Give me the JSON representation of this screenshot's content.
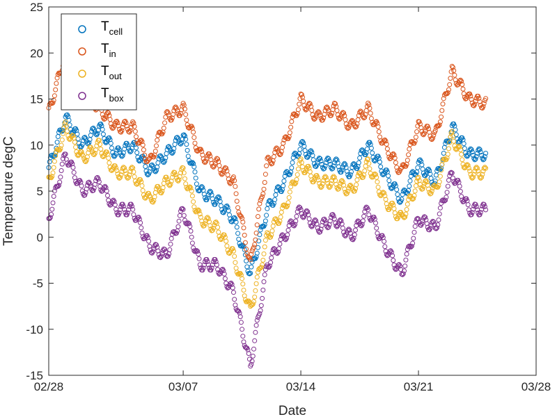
{
  "chart_data": {
    "type": "scatter",
    "xlabel": "Date",
    "ylabel": "Temperature degC",
    "xlim": [
      "02/28",
      "03/28"
    ],
    "ylim": [
      -15,
      25
    ],
    "x_ticks": [
      "02/28",
      "03/07",
      "03/14",
      "03/21",
      "03/28"
    ],
    "y_ticks": [
      -15,
      -10,
      -5,
      0,
      5,
      10,
      15,
      20,
      25
    ],
    "grid": false,
    "legend_position": "top-left",
    "marker": "open-circle",
    "x_dates": [
      "02/28",
      "02/29",
      "03/01",
      "03/02",
      "03/03",
      "03/04",
      "03/05",
      "03/06",
      "03/07",
      "03/08",
      "03/09",
      "03/10",
      "03/11",
      "03/12",
      "03/13",
      "03/14",
      "03/15",
      "03/16",
      "03/17",
      "03/18",
      "03/19",
      "03/20",
      "03/21",
      "03/22",
      "03/23",
      "03/24",
      "03/25"
    ],
    "series": [
      {
        "legend_main": "T",
        "legend_sub": "cell",
        "color": "#0072BD",
        "values": [
          7.5,
          13,
          10,
          12,
          9,
          10,
          7,
          9,
          11,
          5,
          4,
          2,
          -4,
          3,
          6,
          10,
          8,
          8,
          7,
          10,
          7,
          4,
          8,
          6,
          12,
          9,
          9
        ]
      },
      {
        "legend_main": "T",
        "legend_sub": "in",
        "color": "#D95319",
        "values": [
          13.5,
          20,
          16,
          14,
          12,
          12,
          8,
          13,
          14,
          9,
          8,
          6,
          -3,
          8,
          10,
          15,
          13,
          14,
          12,
          14,
          10,
          7,
          12,
          11,
          18,
          15,
          14.5
        ]
      },
      {
        "legend_main": "T",
        "legend_sub": "out",
        "color": "#EDB120",
        "values": [
          6,
          12,
          8.5,
          10,
          7,
          7,
          4,
          6,
          7,
          2,
          1,
          -2,
          -8,
          0,
          3,
          8,
          6,
          6,
          5,
          8,
          4,
          2,
          6,
          5,
          11,
          7,
          7
        ]
      },
      {
        "legend_main": "T",
        "legend_sub": "box",
        "color": "#7E2F8E",
        "values": [
          2,
          9,
          5,
          6,
          3,
          3,
          -1,
          -2,
          3,
          -3,
          -3,
          -6,
          -14,
          -3,
          0,
          3,
          1,
          2,
          0,
          3,
          -1,
          -4,
          2,
          1,
          7,
          3,
          3
        ]
      }
    ]
  }
}
